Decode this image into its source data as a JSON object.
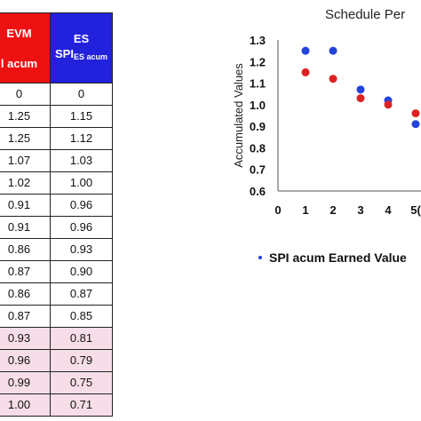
{
  "table": {
    "col1_header_line1": "EVM",
    "col1_header_line2": "l acum",
    "col2_header_line1": "ES",
    "col2_header_spi": "SPI",
    "col2_header_sub": "ES acum",
    "rows": [
      {
        "a": "0",
        "b": "0",
        "highlight": false
      },
      {
        "a": "1.25",
        "b": "1.15",
        "highlight": false
      },
      {
        "a": "1.25",
        "b": "1.12",
        "highlight": false
      },
      {
        "a": "1.07",
        "b": "1.03",
        "highlight": false
      },
      {
        "a": "1.02",
        "b": "1.00",
        "highlight": false
      },
      {
        "a": "0.91",
        "b": "0.96",
        "highlight": false
      },
      {
        "a": "0.91",
        "b": "0.96",
        "highlight": false
      },
      {
        "a": "0.86",
        "b": "0.93",
        "highlight": false
      },
      {
        "a": "0.87",
        "b": "0.90",
        "highlight": false
      },
      {
        "a": "0.86",
        "b": "0.87",
        "highlight": false
      },
      {
        "a": "0.87",
        "b": "0.85",
        "highlight": false
      },
      {
        "a": "0.93",
        "b": "0.81",
        "highlight": true
      },
      {
        "a": "0.96",
        "b": "0.79",
        "highlight": true
      },
      {
        "a": "0.99",
        "b": "0.75",
        "highlight": true
      },
      {
        "a": "1.00",
        "b": "0.71",
        "highlight": true
      }
    ]
  },
  "chart_data": {
    "type": "scatter",
    "title": "Schedule Per",
    "ylabel": "Accumulated Values",
    "xlabel": "",
    "xlim": [
      0,
      5
    ],
    "ylim": [
      0.6,
      1.3
    ],
    "x_ticks": [
      "0",
      "1",
      "2",
      "3",
      "4",
      "5("
    ],
    "y_ticks": [
      "0.6",
      "0.7",
      "0.8",
      "0.9",
      "1.0",
      "1.1",
      "1.2",
      "1.3"
    ],
    "grid": false,
    "legend_label": "SPI acum Earned Value",
    "series": [
      {
        "color": "#2244dd",
        "x": [
          1,
          2,
          3,
          4,
          5
        ],
        "y": [
          1.25,
          1.25,
          1.07,
          1.02,
          0.91
        ]
      },
      {
        "color": "#dd2222",
        "x": [
          1,
          2,
          3,
          4,
          5
        ],
        "y": [
          1.15,
          1.12,
          1.03,
          1.0,
          0.96
        ]
      }
    ]
  }
}
